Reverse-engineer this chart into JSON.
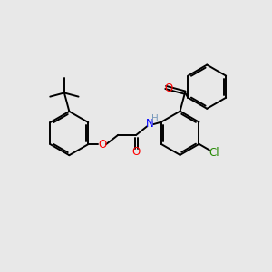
{
  "background_color": "#e8e8e8",
  "bond_color": "#000000",
  "line_width": 1.4,
  "figsize": [
    3.0,
    3.0
  ],
  "dpi": 100,
  "xlim": [
    0,
    10
  ],
  "ylim": [
    0,
    10
  ]
}
